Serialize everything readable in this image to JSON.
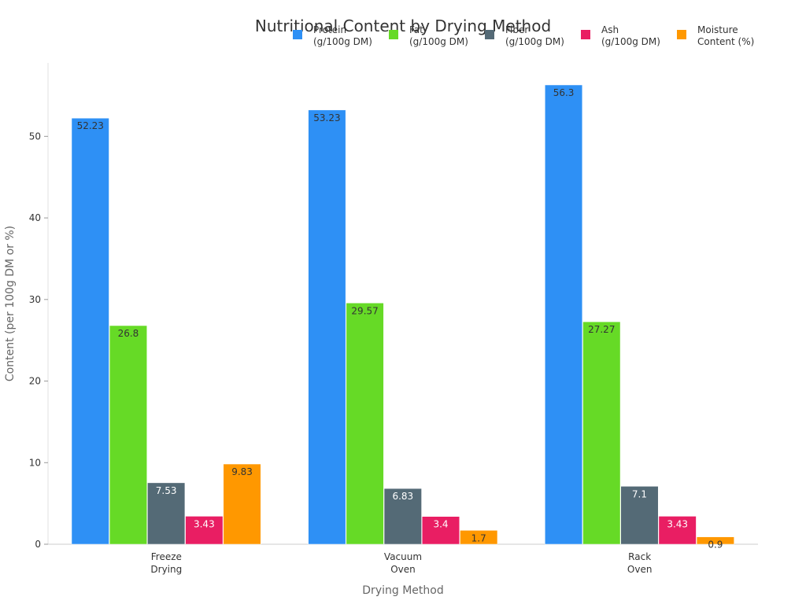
{
  "chart_data": {
    "type": "bar",
    "title": "Nutritional Content by Drying Method",
    "xlabel": "Drying Method",
    "ylabel": "Content (per 100g DM or %)",
    "ylim": [
      0,
      59
    ],
    "yticks": [
      0,
      10,
      20,
      30,
      40,
      50
    ],
    "grid": false,
    "legend_position": "top-right",
    "categories": [
      [
        "Freeze",
        "Drying"
      ],
      [
        "Vacuum",
        "Oven"
      ],
      [
        "Rack",
        "Oven"
      ]
    ],
    "series": [
      {
        "name": [
          "Protein",
          "(g/100g DM)"
        ],
        "color": "#2E90F5",
        "label_color": "#333333",
        "values": [
          52.23,
          53.23,
          56.3
        ]
      },
      {
        "name": [
          "Fat",
          "(g/100g DM)"
        ],
        "color": "#66DA26",
        "label_color": "#333333",
        "values": [
          26.8,
          29.57,
          27.27
        ]
      },
      {
        "name": [
          "Fiber",
          "(g/100g DM)"
        ],
        "color": "#546A76",
        "label_color": "#ffffff",
        "values": [
          7.53,
          6.83,
          7.1
        ]
      },
      {
        "name": [
          "Ash",
          "(g/100g DM)"
        ],
        "color": "#E91E63",
        "label_color": "#ffffff",
        "values": [
          3.43,
          3.4,
          3.43
        ]
      },
      {
        "name": [
          "Moisture",
          "Content (%)"
        ],
        "color": "#FF9800",
        "label_color": "#333333",
        "values": [
          9.83,
          1.7,
          0.9
        ]
      }
    ],
    "value_labels": [
      [
        "52.23",
        "53.23",
        "56.3"
      ],
      [
        "26.8",
        "29.57",
        "27.27"
      ],
      [
        "7.53",
        "6.83",
        "7.1"
      ],
      [
        "3.43",
        "3.4",
        "3.43"
      ],
      [
        "9.83",
        "1.7",
        "0.9"
      ]
    ]
  }
}
